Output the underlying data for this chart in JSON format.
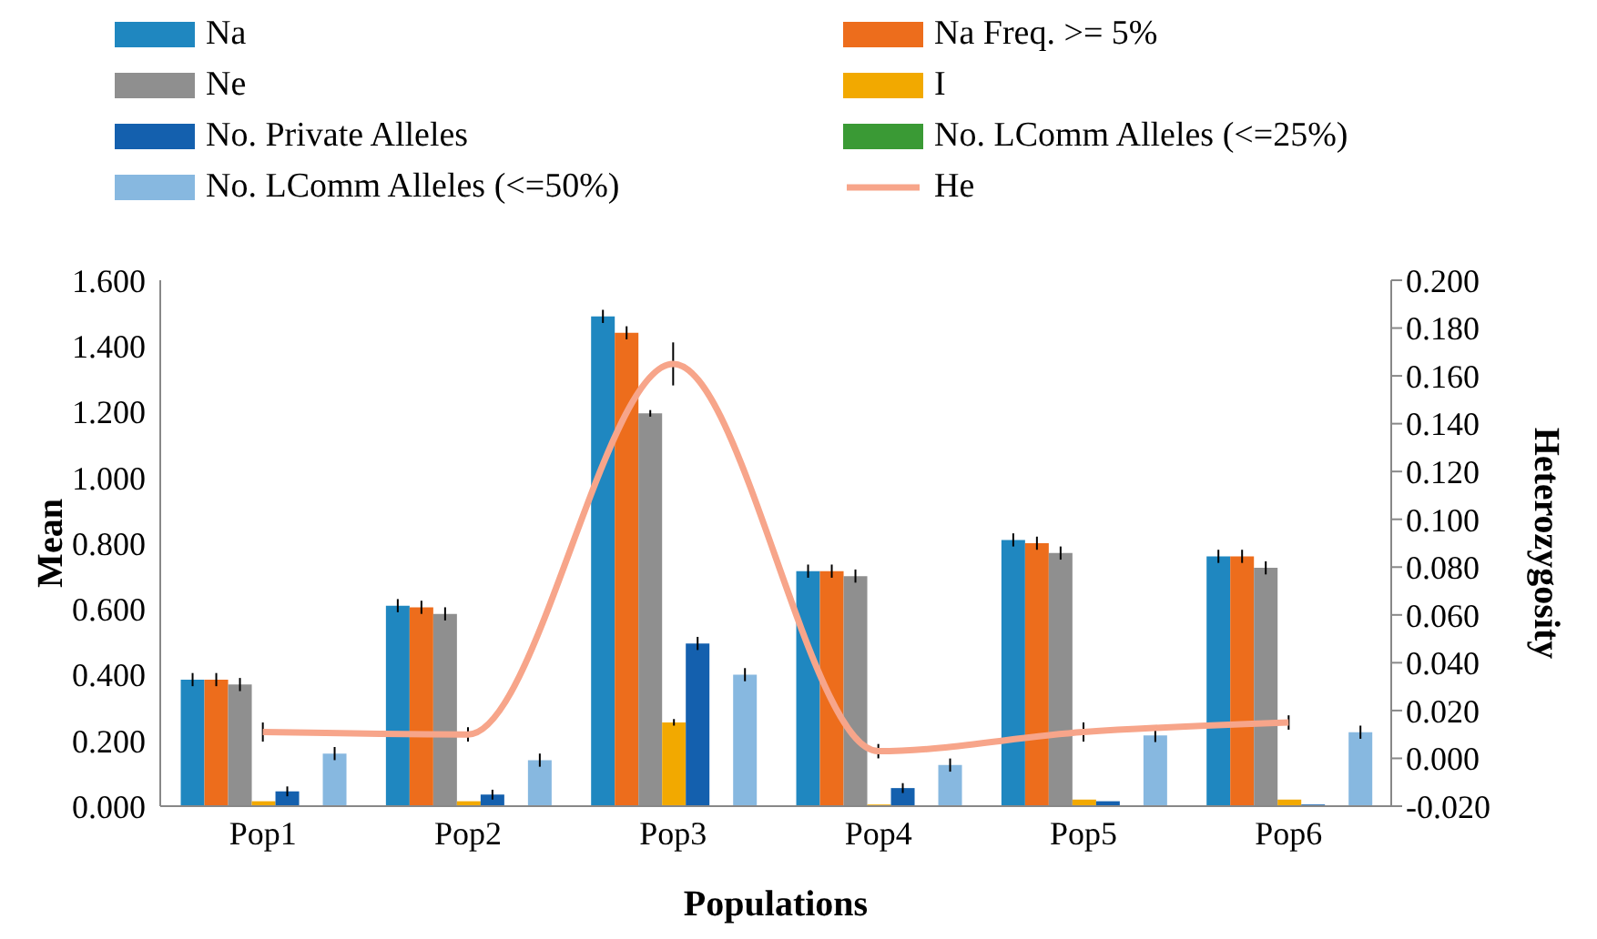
{
  "chart_data": {
    "type": "bar",
    "xlabel": "Populations",
    "ylabel": "Mean",
    "y2label": "Heterozygosity",
    "categories": [
      "Pop1",
      "Pop2",
      "Pop3",
      "Pop4",
      "Pop5",
      "Pop6"
    ],
    "series": [
      {
        "name": "Na",
        "color": "#1f87c0",
        "values": [
          0.385,
          0.61,
          1.49,
          0.715,
          0.81,
          0.76
        ],
        "errors": [
          0.02,
          0.02,
          0.02,
          0.02,
          0.02,
          0.02
        ]
      },
      {
        "name": "Na Freq. >= 5%",
        "color": "#ed6d1c",
        "values": [
          0.385,
          0.605,
          1.44,
          0.715,
          0.8,
          0.76
        ],
        "errors": [
          0.02,
          0.02,
          0.02,
          0.02,
          0.02,
          0.02
        ]
      },
      {
        "name": "Ne",
        "color": "#8f8f8f",
        "values": [
          0.37,
          0.585,
          1.195,
          0.7,
          0.77,
          0.725
        ],
        "errors": [
          0.02,
          0.02,
          0.01,
          0.02,
          0.02,
          0.02
        ]
      },
      {
        "name": "I",
        "color": "#f2a900",
        "values": [
          0.015,
          0.015,
          0.255,
          0.005,
          0.02,
          0.02
        ],
        "errors": [
          null,
          null,
          0.01,
          null,
          null,
          null
        ]
      },
      {
        "name": "No. Private Alleles",
        "color": "#1460ae",
        "values": [
          0.045,
          0.035,
          0.495,
          0.055,
          0.015,
          0.005
        ],
        "errors": [
          0.015,
          0.015,
          0.02,
          0.015,
          null,
          null
        ]
      },
      {
        "name": "No. LComm Alleles (<=25%)",
        "color": "#3a9a35",
        "values": [
          0,
          0,
          0,
          0,
          0,
          0
        ]
      },
      {
        "name": "No. LComm Alleles (<=50%)",
        "color": "#87b8e0",
        "values": [
          0.16,
          0.14,
          0.4,
          0.125,
          0.215,
          0.225
        ],
        "errors": [
          0.02,
          0.02,
          0.02,
          0.02,
          0.02,
          0.02
        ]
      },
      {
        "name": "He",
        "type": "line",
        "axis": "y2",
        "color": "#f7a58a",
        "values": [
          0.011,
          0.01,
          0.165,
          0.003,
          0.011,
          0.015
        ],
        "errors": [
          0.004,
          0.003,
          0.009,
          0.003,
          0.004,
          0.003
        ]
      }
    ],
    "ylim": [
      0,
      1.6
    ],
    "yticks": [
      {
        "value": 0,
        "label": "0.000"
      },
      {
        "value": 0.2,
        "label": "0.200"
      },
      {
        "value": 0.4,
        "label": "0.400"
      },
      {
        "value": 0.6,
        "label": "0.600"
      },
      {
        "value": 0.8,
        "label": "0.800"
      },
      {
        "value": 1,
        "label": "1.000"
      },
      {
        "value": 1.2,
        "label": "1.200"
      },
      {
        "value": 1.4,
        "label": "1.400"
      },
      {
        "value": 1.6,
        "label": "1.600"
      }
    ],
    "y2lim": [
      -0.02,
      0.2
    ],
    "y2ticks": [
      {
        "value": -0.02,
        "label": "-0.020"
      },
      {
        "value": 0,
        "label": "0.000"
      },
      {
        "value": 0.02,
        "label": "0.020"
      },
      {
        "value": 0.04,
        "label": "0.040"
      },
      {
        "value": 0.06,
        "label": "0.060"
      },
      {
        "value": 0.08,
        "label": "0.080"
      },
      {
        "value": 0.1,
        "label": "0.100"
      },
      {
        "value": 0.12,
        "label": "0.120"
      },
      {
        "value": 0.14,
        "label": "0.140"
      },
      {
        "value": 0.16,
        "label": "0.160"
      },
      {
        "value": 0.18,
        "label": "0.180"
      },
      {
        "value": 0.2,
        "label": "0.200"
      }
    ],
    "legend": "top",
    "grid": false,
    "marker": "none"
  }
}
